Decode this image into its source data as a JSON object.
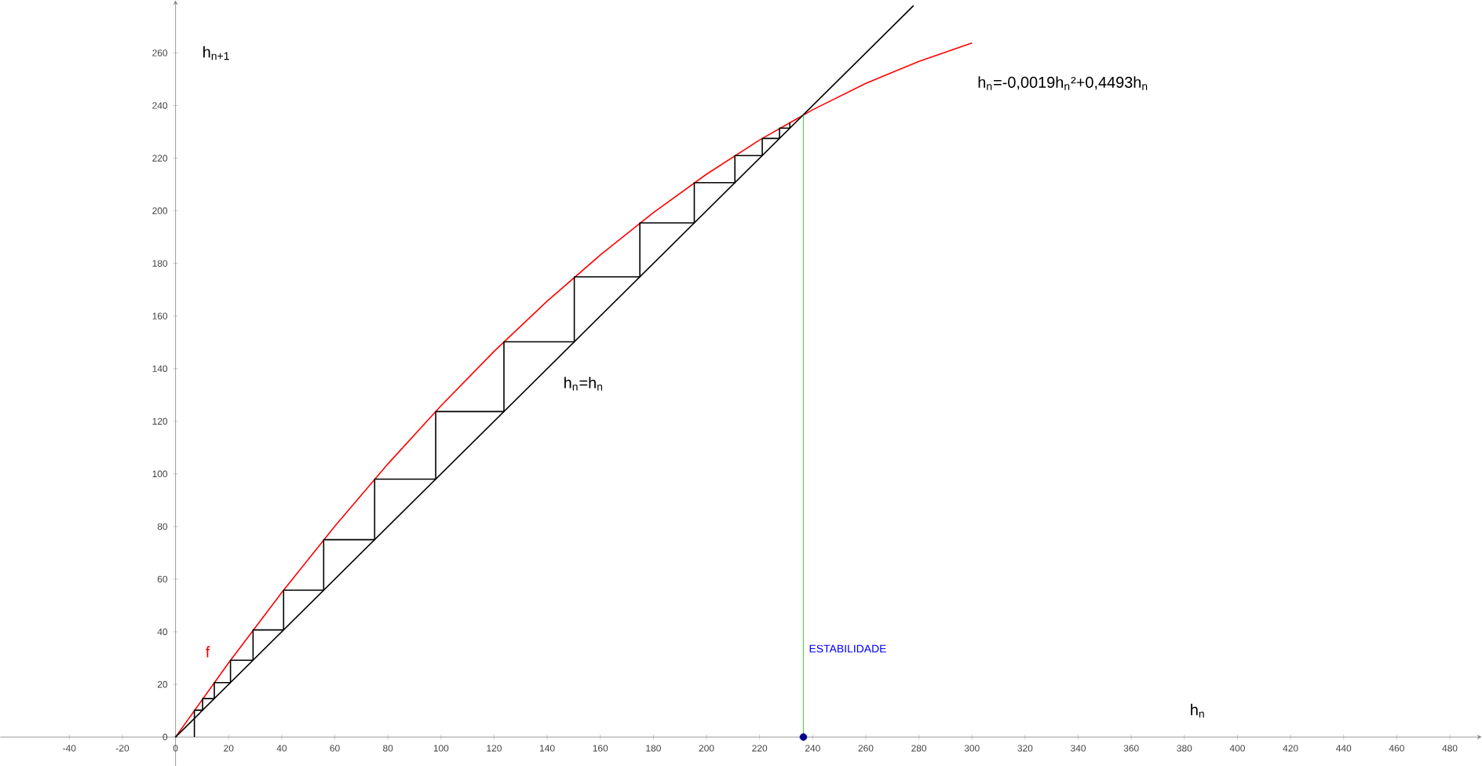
{
  "chart_data": {
    "type": "line",
    "xlabel": "h$_{n}$",
    "ylabel": "h$_{n+1}$",
    "xlim": [
      -66,
      492
    ],
    "ylim": [
      -11,
      280
    ],
    "xticks": [
      -40,
      -20,
      0,
      20,
      40,
      60,
      80,
      100,
      120,
      140,
      160,
      180,
      200,
      220,
      240,
      260,
      280,
      300,
      320,
      340,
      360,
      380,
      400,
      420,
      440,
      460,
      480
    ],
    "yticks": [
      0,
      20,
      40,
      60,
      80,
      100,
      120,
      140,
      160,
      180,
      200,
      220,
      240,
      260
    ],
    "grid": false,
    "series": [
      {
        "color": "#ff0000",
        "x": [
          0,
          20,
          40,
          60,
          80,
          100,
          120,
          140,
          160,
          180,
          200,
          220,
          240,
          260,
          280,
          300
        ],
        "values": [
          0,
          28.2,
          54.9,
          80.1,
          103.8,
          125.9,
          146.6,
          165.7,
          183.2,
          199.3,
          213.9,
          226.9,
          238.4,
          248.4,
          256.8,
          263.8
        ]
      },
      {
        "color": "#000000",
        "x": [
          0,
          278
        ],
        "values": [
          0,
          278
        ]
      },
      {
        "color": "#000000",
        "x": [
          7.1,
          7.1,
          10.2,
          10.2,
          14.6,
          14.6,
          20.7,
          20.7,
          29.2,
          29.2,
          40.7,
          40.7,
          55.8,
          55.8,
          75.0,
          75.0,
          98.0,
          98.0,
          123.7,
          123.7,
          150.2,
          150.2,
          174.9,
          174.9,
          195.4,
          195.4,
          210.7,
          210.7,
          221.0,
          221.0,
          227.5,
          227.5,
          231.4,
          231.4
        ],
        "values": [
          0,
          10.2,
          10.2,
          14.6,
          14.6,
          20.7,
          20.7,
          29.2,
          29.2,
          40.7,
          40.7,
          55.8,
          55.8,
          75.0,
          75.0,
          98.0,
          98.0,
          123.7,
          123.7,
          150.2,
          150.2,
          174.9,
          174.9,
          195.4,
          195.4,
          210.7,
          210.7,
          221.0,
          221.0,
          227.5,
          227.5,
          231.4,
          231.4,
          233.6
        ]
      },
      {
        "type": "scatter",
        "color": "#00008b",
        "marker": "circle",
        "x": [
          236.5
        ],
        "values": [
          0
        ]
      }
    ],
    "ref_lines": [
      {
        "axis": "x",
        "value": 236.5,
        "color": "#00e000",
        "label": "ESTABILIDADE"
      }
    ],
    "annotations": [
      "h$_{n}$=-0,0019h$_{n}$²+0,4493h$_{n}$",
      "h$_{n}$=h$_{n}$",
      "f"
    ]
  }
}
